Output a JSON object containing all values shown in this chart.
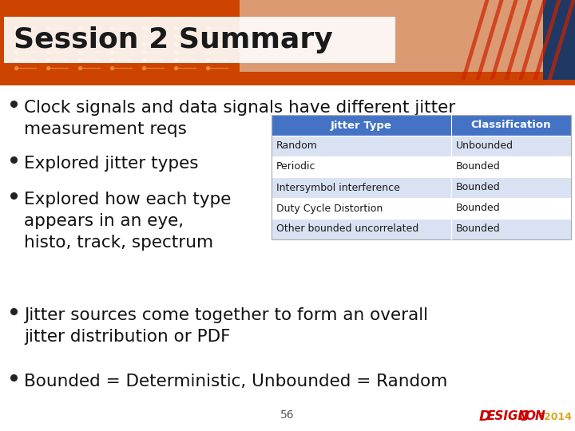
{
  "title": "Session 2 Summary",
  "title_fontsize": 26,
  "title_text_color": "#1a1a1a",
  "slide_bg_color": "#FFFFFF",
  "bullet_points": [
    "Clock signals and data signals have different jitter\nmeasurement reqs",
    "Explored jitter types",
    "Explored how each type\nappears in an eye,\nhisto, track, spectrum",
    "Jitter sources come together to form an overall\njitter distribution or PDF",
    "Bounded = Deterministic, Unbounded = Random"
  ],
  "bullet_fontsize": 15.5,
  "table_headers": [
    "Jitter Type",
    "Classification"
  ],
  "table_rows": [
    [
      "Random",
      "Unbounded"
    ],
    [
      "Periodic",
      "Bounded"
    ],
    [
      "Intersymbol interference",
      "Bounded"
    ],
    [
      "Duty Cycle Distortion",
      "Bounded"
    ],
    [
      "Other bounded uncorrelated",
      "Bounded"
    ]
  ],
  "table_header_bg": "#4472C4",
  "table_header_text": "#FFFFFF",
  "table_row_bg_odd": "#D9E2F3",
  "table_row_bg_even": "#FFFFFF",
  "table_text_color": "#1a1a1a",
  "page_number": "56",
  "header_orange": "#CC4400",
  "header_dark_navy": "#1F3864",
  "stripe_color": "#CC4400",
  "title_box_color": "#FFFFFF"
}
